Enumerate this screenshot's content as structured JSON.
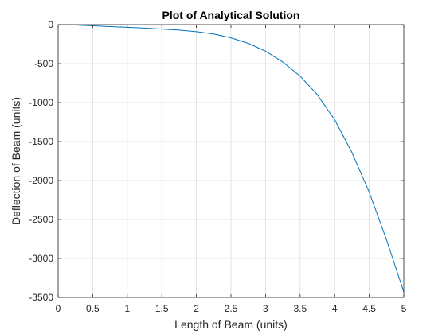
{
  "chart_data": {
    "type": "line",
    "title": "Plot of Analytical Solution",
    "xlabel": "Length of Beam (units)",
    "ylabel": "Deflection of Beam (units)",
    "xlim": [
      0,
      5
    ],
    "ylim": [
      -3500,
      0
    ],
    "xticks": [
      0,
      0.5,
      1,
      1.5,
      2,
      2.5,
      3,
      3.5,
      4,
      4.5,
      5
    ],
    "yticks": [
      0,
      -500,
      -1000,
      -1500,
      -2000,
      -2500,
      -3000,
      -3500
    ],
    "grid": true,
    "box": true,
    "series": [
      {
        "color": "#0072BD",
        "x": [
          0,
          0.25,
          0.5,
          0.75,
          1,
          1.25,
          1.5,
          1.75,
          2,
          2.25,
          2.5,
          2.75,
          3,
          3.25,
          3.5,
          3.75,
          4,
          4.25,
          4.5,
          4.75,
          5
        ],
        "y": [
          0,
          -5,
          -15,
          -25,
          -35,
          -45,
          -57,
          -70,
          -90,
          -120,
          -170,
          -240,
          -340,
          -480,
          -660,
          -900,
          -1220,
          -1640,
          -2150,
          -2760,
          -3430
        ]
      }
    ]
  }
}
